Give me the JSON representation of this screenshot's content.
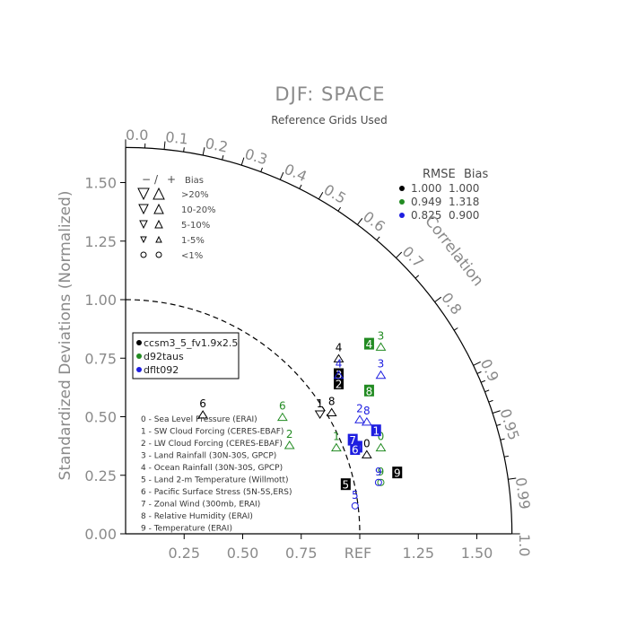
{
  "chart_data": {
    "type": "scatter",
    "title": "DJF: SPACE",
    "subtitle": "Reference Grids Used",
    "ylabel": "Standardized Deviations (Normalized)",
    "correlation_label": "Correlation",
    "ref_label": "REF",
    "ylim": [
      0,
      1.65
    ],
    "xlim": [
      0,
      1.65
    ],
    "grid": false,
    "x_ticks": [
      {
        "v": 0.25,
        "label": "0.25"
      },
      {
        "v": 0.5,
        "label": "0.50"
      },
      {
        "v": 0.75,
        "label": "0.75"
      },
      {
        "v": 1.25,
        "label": "1.25"
      },
      {
        "v": 1.5,
        "label": "1.50"
      }
    ],
    "y_ticks": [
      {
        "v": 0.0,
        "label": "0.00"
      },
      {
        "v": 0.25,
        "label": "0.25"
      },
      {
        "v": 0.5,
        "label": "0.50"
      },
      {
        "v": 0.75,
        "label": "0.75"
      },
      {
        "v": 1.0,
        "label": "1.00"
      },
      {
        "v": 1.25,
        "label": "1.25"
      },
      {
        "v": 1.5,
        "label": "1.50"
      }
    ],
    "corr_ticks_major": [
      {
        "c": 0.0,
        "label": "0.0"
      },
      {
        "c": 0.1,
        "label": "0.1"
      },
      {
        "c": 0.2,
        "label": "0.2"
      },
      {
        "c": 0.3,
        "label": "0.3"
      },
      {
        "c": 0.4,
        "label": "0.4"
      },
      {
        "c": 0.5,
        "label": "0.5"
      },
      {
        "c": 0.6,
        "label": "0.6"
      },
      {
        "c": 0.7,
        "label": "0.7"
      },
      {
        "c": 0.8,
        "label": "0.8"
      },
      {
        "c": 0.9,
        "label": "0.9"
      },
      {
        "c": 0.95,
        "label": "0.95"
      },
      {
        "c": 0.99,
        "label": "0.99"
      },
      {
        "c": 1.0,
        "label": "1.0"
      }
    ],
    "corr_ticks_minor": [
      0.05,
      0.15,
      0.25,
      0.35,
      0.45,
      0.55,
      0.65,
      0.75,
      0.85,
      0.91,
      0.92,
      0.93,
      0.94,
      0.96,
      0.97,
      0.98
    ],
    "rmse_bias_header": {
      "rmse": "RMSE",
      "bias": "Bias"
    },
    "series": [
      {
        "name": "ccsm3_5_fv1.9x2.5",
        "color": "#000000",
        "rmse": "1.000",
        "bias": "1.000",
        "points": [
          {
            "id": "0",
            "x": 1.03,
            "y": 0.37,
            "marker": "triangle-up"
          },
          {
            "id": "1",
            "x": 0.83,
            "y": 0.54,
            "marker": "triangle-down"
          },
          {
            "id": "2",
            "x": 0.91,
            "y": 0.64,
            "marker": "box"
          },
          {
            "id": "3",
            "x": 0.91,
            "y": 0.68,
            "marker": "box"
          },
          {
            "id": "4",
            "x": 0.91,
            "y": 0.78,
            "marker": "triangle-up"
          },
          {
            "id": "5",
            "x": 0.94,
            "y": 0.21,
            "marker": "box"
          },
          {
            "id": "6",
            "x": 0.33,
            "y": 0.54,
            "marker": "triangle-up"
          },
          {
            "id": "8",
            "x": 0.88,
            "y": 0.55,
            "marker": "triangle-up"
          },
          {
            "id": "9",
            "x": 1.16,
            "y": 0.26,
            "marker": "box"
          }
        ]
      },
      {
        "name": "d92taus",
        "color": "#228b22",
        "rmse": "0.949",
        "bias": "1.318",
        "points": [
          {
            "id": "0",
            "x": 1.09,
            "y": 0.4,
            "marker": "triangle-up"
          },
          {
            "id": "1",
            "x": 0.9,
            "y": 0.4,
            "marker": "triangle-up"
          },
          {
            "id": "2",
            "x": 0.7,
            "y": 0.41,
            "marker": "triangle-up"
          },
          {
            "id": "3",
            "x": 1.09,
            "y": 0.83,
            "marker": "triangle-up"
          },
          {
            "id": "4",
            "x": 1.04,
            "y": 0.81,
            "marker": "box"
          },
          {
            "id": "6",
            "x": 0.67,
            "y": 0.53,
            "marker": "triangle-up"
          },
          {
            "id": "8",
            "x": 1.04,
            "y": 0.61,
            "marker": "box"
          },
          {
            "id": "9",
            "x": 1.09,
            "y": 0.25,
            "marker": "circle"
          }
        ]
      },
      {
        "name": "dflt092",
        "color": "#1e1ee0",
        "rmse": "0.825",
        "bias": "0.900",
        "points": [
          {
            "id": "0",
            "x": 0.99,
            "y": 0.37,
            "marker": "box"
          },
          {
            "id": "1",
            "x": 1.07,
            "y": 0.44,
            "marker": "box"
          },
          {
            "id": "2",
            "x": 1.0,
            "y": 0.52,
            "marker": "triangle-up"
          },
          {
            "id": "3",
            "x": 1.09,
            "y": 0.71,
            "marker": "triangle-up"
          },
          {
            "id": "4",
            "x": 0.91,
            "y": 0.71,
            "marker": "triangle-up"
          },
          {
            "id": "5",
            "x": 0.98,
            "y": 0.15,
            "marker": "circle"
          },
          {
            "id": "6",
            "x": 0.98,
            "y": 0.36,
            "marker": "box"
          },
          {
            "id": "7",
            "x": 0.97,
            "y": 0.4,
            "marker": "box"
          },
          {
            "id": "8",
            "x": 1.03,
            "y": 0.51,
            "marker": "triangle-up"
          },
          {
            "id": "9",
            "x": 1.08,
            "y": 0.25,
            "marker": "circle"
          }
        ]
      }
    ],
    "bias_legend": {
      "header": {
        "minus": "−",
        "slash": "/",
        "plus": "+",
        "bias": "Bias"
      },
      "rows": [
        {
          "label": ">20%",
          "symbol": "tri",
          "size": 12
        },
        {
          "label": "10-20%",
          "symbol": "tri",
          "size": 10
        },
        {
          "label": "5-10%",
          "symbol": "tri",
          "size": 8
        },
        {
          "label": "1-5%",
          "symbol": "tri",
          "size": 6
        },
        {
          "label": "<1%",
          "symbol": "circle",
          "size": 6
        }
      ]
    },
    "variables": [
      "0 - Sea Level Pressure (ERAI)",
      "1 - SW Cloud Forcing (CERES-EBAF)",
      "2 - LW Cloud Forcing (CERES-EBAF)",
      "3 - Land Rainfall (30N-30S, GPCP)",
      "4 - Ocean Rainfall (30N-30S, GPCP)",
      "5 - Land 2-m Temperature (Willmott)",
      "6 - Pacific Surface Stress (5N-5S,ERS)",
      "7 - Zonal Wind (300mb, ERAI)",
      "8 - Relative Humidity (ERAI)",
      "9 - Temperature (ERAI)"
    ]
  }
}
